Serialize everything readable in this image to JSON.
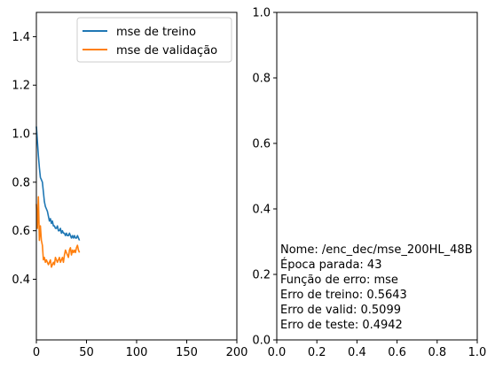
{
  "colors": {
    "train": "#1f77b4",
    "valid": "#ff7f0e",
    "axis": "#000000",
    "background": "#ffffff"
  },
  "chart_data": [
    {
      "type": "line",
      "xlim": [
        0,
        200
      ],
      "ylim": [
        0.15,
        1.5
      ],
      "x_ticks": [
        "0",
        "50",
        "100",
        "150",
        "200"
      ],
      "y_ticks": [
        "0.4",
        "0.6",
        "0.8",
        "1.0",
        "1.2",
        "1.4"
      ],
      "grid": false,
      "legend_position": "top-right",
      "series": [
        {
          "name": "mse de treino",
          "color": "#1f77b4",
          "x": [
            0,
            1,
            2,
            3,
            4,
            5,
            6,
            7,
            8,
            9,
            10,
            11,
            12,
            13,
            14,
            15,
            16,
            17,
            18,
            19,
            20,
            21,
            22,
            23,
            24,
            25,
            26,
            27,
            28,
            29,
            30,
            31,
            32,
            33,
            34,
            35,
            36,
            37,
            38,
            39,
            40,
            41,
            42,
            43
          ],
          "values": [
            1.03,
            0.97,
            0.91,
            0.86,
            0.82,
            0.81,
            0.8,
            0.76,
            0.72,
            0.7,
            0.69,
            0.68,
            0.66,
            0.64,
            0.65,
            0.63,
            0.64,
            0.62,
            0.62,
            0.61,
            0.61,
            0.62,
            0.6,
            0.6,
            0.61,
            0.59,
            0.6,
            0.59,
            0.59,
            0.58,
            0.59,
            0.58,
            0.58,
            0.59,
            0.58,
            0.57,
            0.58,
            0.57,
            0.58,
            0.57,
            0.57,
            0.58,
            0.57,
            0.56
          ]
        },
        {
          "name": "mse de validação",
          "color": "#ff7f0e",
          "x": [
            0,
            1,
            2,
            3,
            4,
            5,
            6,
            7,
            8,
            9,
            10,
            11,
            12,
            13,
            14,
            15,
            16,
            17,
            18,
            19,
            20,
            21,
            22,
            23,
            24,
            25,
            26,
            27,
            28,
            29,
            30,
            31,
            32,
            33,
            34,
            35,
            36,
            37,
            38,
            39,
            40,
            41,
            42,
            43
          ],
          "values": [
            0.71,
            0.61,
            0.74,
            0.56,
            0.62,
            0.56,
            0.54,
            0.48,
            0.49,
            0.47,
            0.48,
            0.47,
            0.46,
            0.47,
            0.48,
            0.45,
            0.46,
            0.47,
            0.46,
            0.49,
            0.48,
            0.47,
            0.48,
            0.49,
            0.47,
            0.48,
            0.49,
            0.47,
            0.5,
            0.52,
            0.51,
            0.5,
            0.49,
            0.52,
            0.53,
            0.5,
            0.52,
            0.51,
            0.52,
            0.51,
            0.53,
            0.54,
            0.52,
            0.51
          ]
        }
      ]
    },
    {
      "type": "line",
      "xlim": [
        0,
        1
      ],
      "ylim": [
        0,
        1
      ],
      "x_ticks": [
        "0.0",
        "0.2",
        "0.4",
        "0.6",
        "0.8",
        "1.0"
      ],
      "y_ticks": [
        "0.0",
        "0.2",
        "0.4",
        "0.6",
        "0.8",
        "1.0"
      ],
      "grid": false,
      "series": [],
      "annotation_lines": [
        "Nome: /enc_dec/mse_200HL_48B",
        "Época parada: 43",
        "Função de erro: mse",
        "Erro de treino: 0.5643",
        "Erro de valid: 0.5099",
        "Erro de teste: 0.4942"
      ]
    }
  ]
}
